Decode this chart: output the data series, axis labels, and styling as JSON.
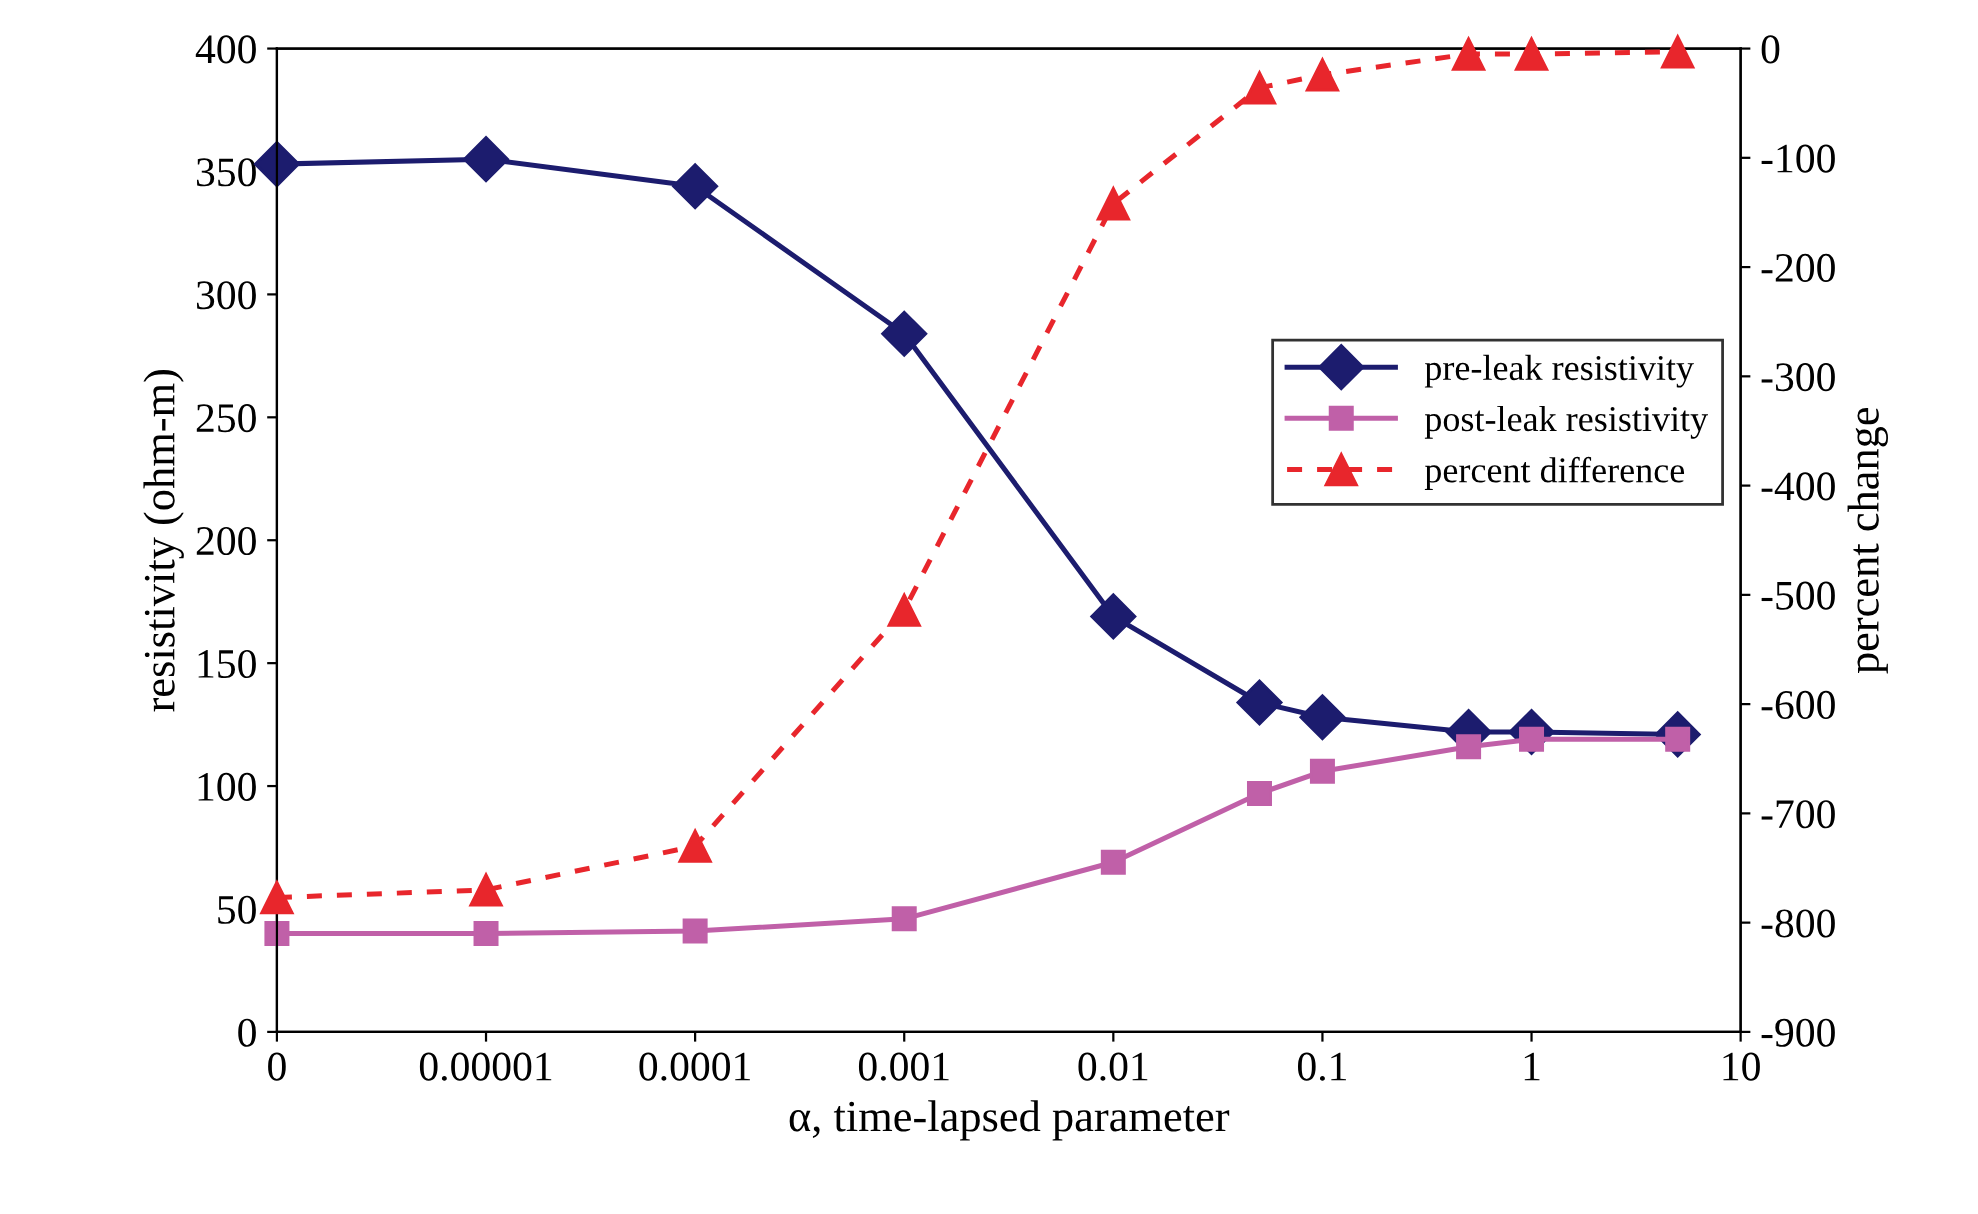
{
  "chart_data": {
    "type": "line",
    "xlabel": "α, time-lapsed parameter",
    "ylabel": "resistivity (ohm-m)",
    "y2label": "percent change",
    "log": "x",
    "x": [
      1e-06,
      1e-05,
      0.0001,
      0.001,
      0.01,
      0.05,
      0.1,
      0.5,
      1,
      5
    ],
    "xlim": [
      1e-06,
      10
    ],
    "xticks": [
      {
        "value": 1e-06,
        "label": "0"
      },
      {
        "value": 1e-05,
        "label": "0.00001"
      },
      {
        "value": 0.0001,
        "label": "0.0001"
      },
      {
        "value": 0.001,
        "label": "0.001"
      },
      {
        "value": 0.01,
        "label": "0.01"
      },
      {
        "value": 0.1,
        "label": "0.1"
      },
      {
        "value": 1,
        "label": "1"
      },
      {
        "value": 10,
        "label": "10"
      }
    ],
    "ylim": [
      0,
      400
    ],
    "yticks": [
      0,
      50,
      100,
      150,
      200,
      250,
      300,
      350,
      400
    ],
    "y2lim": [
      -900,
      0
    ],
    "y2ticks": [
      -900,
      -800,
      -700,
      -600,
      -500,
      -400,
      -300,
      -200,
      -100,
      0
    ],
    "grid": false,
    "legend": "center right",
    "series": [
      {
        "name": "pre-leak resistivity",
        "color": "#1c1c6e",
        "marker": "diamond",
        "line_style": "solid",
        "values": [
          353,
          355,
          344,
          284,
          169,
          134,
          128,
          122,
          122,
          121
        ]
      },
      {
        "name": "post-leak resistivity",
        "color": "#c060a8",
        "marker": "square",
        "line_style": "solid",
        "values": [
          40,
          40,
          41,
          46,
          69,
          97,
          106,
          116,
          119,
          119
        ]
      },
      {
        "name": "percent difference",
        "color": "#e8262c",
        "marker": "triangle",
        "line_style": "dashed",
        "axis": "y2",
        "values": [
          -777,
          -770,
          -730,
          -514,
          -142,
          -36,
          -24,
          -5,
          -5,
          -3
        ]
      }
    ]
  }
}
